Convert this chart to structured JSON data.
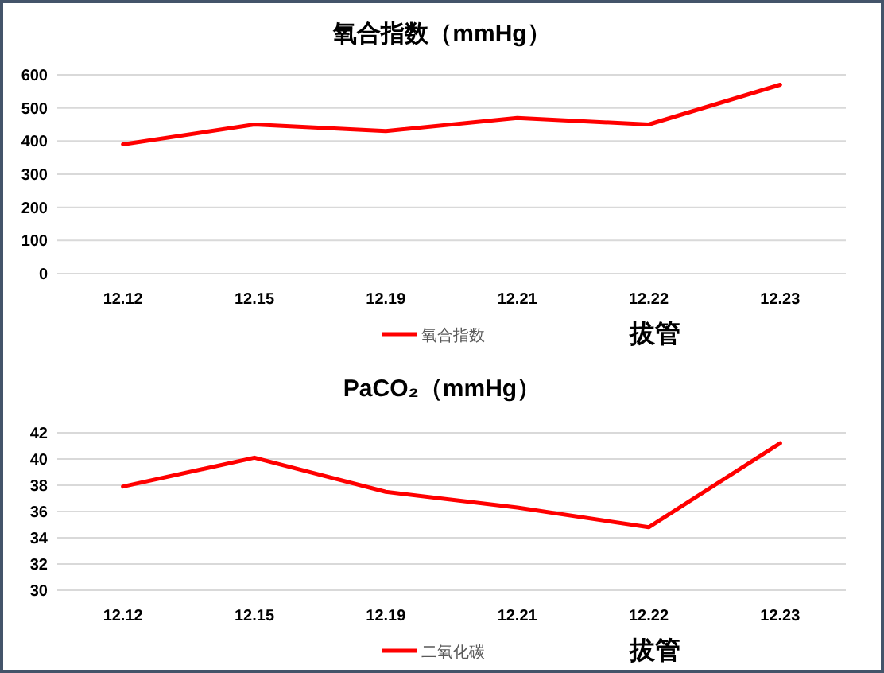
{
  "chart_data": [
    {
      "type": "line",
      "title": "氧合指数（mmHg）",
      "categories": [
        "12.12",
        "12.15",
        "12.19",
        "12.21",
        "12.22",
        "12.23"
      ],
      "series": [
        {
          "name": "氧合指数",
          "color": "#ff0000",
          "values": [
            390,
            450,
            430,
            470,
            450,
            570
          ]
        }
      ],
      "ylim": [
        0,
        600
      ],
      "yticks": [
        0,
        100,
        200,
        300,
        400,
        500,
        600
      ],
      "grid": "y",
      "legend": "bottom",
      "marker": "none",
      "line_style": "solid",
      "annotations": [
        "拔管"
      ]
    },
    {
      "type": "line",
      "title": "PaCO₂（mmHg）",
      "categories": [
        "12.12",
        "12.15",
        "12.19",
        "12.21",
        "12.22",
        "12.23"
      ],
      "series": [
        {
          "name": "二氧化碳",
          "color": "#ff0000",
          "values": [
            37.9,
            40.1,
            37.5,
            36.3,
            34.8,
            41.2
          ]
        }
      ],
      "ylim": [
        30,
        42
      ],
      "yticks": [
        30,
        32,
        34,
        36,
        38,
        40,
        42
      ],
      "grid": "y",
      "legend": "bottom",
      "marker": "none",
      "line_style": "solid",
      "annotations": [
        "拔管"
      ]
    }
  ]
}
